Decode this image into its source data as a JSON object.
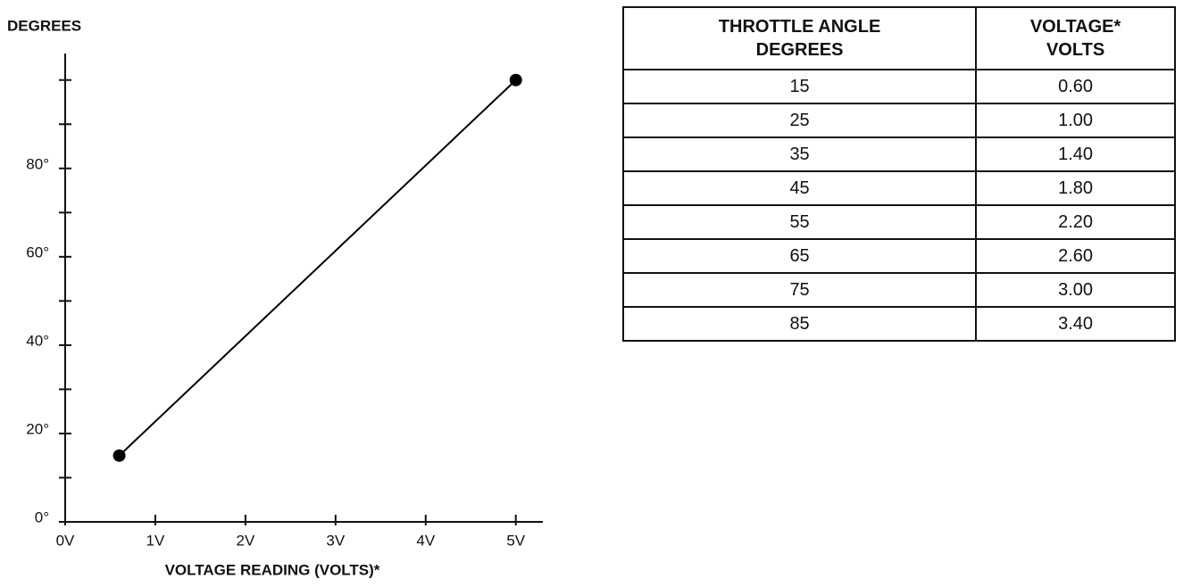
{
  "chart_data": {
    "type": "line",
    "y_label": "DEGREES",
    "x_label": "VOLTAGE READING (VOLTS)*",
    "x": [
      0.6,
      5
    ],
    "values": [
      15,
      100
    ],
    "color": "#000000",
    "xlim": [
      0,
      5.3
    ],
    "ylim": [
      0,
      106
    ],
    "xticks": [
      {
        "value": 0,
        "label": "0V"
      },
      {
        "value": 1,
        "label": "1V"
      },
      {
        "value": 2,
        "label": "2V"
      },
      {
        "value": 3,
        "label": "3V"
      },
      {
        "value": 4,
        "label": "4V"
      },
      {
        "value": 5,
        "label": "5V"
      }
    ],
    "yticks": [
      {
        "value": 0,
        "label": "0°"
      },
      {
        "value": 20,
        "label": "20°"
      },
      {
        "value": 40,
        "label": "40°"
      },
      {
        "value": 60,
        "label": "60°"
      },
      {
        "value": 80,
        "label": "80°"
      }
    ],
    "yminorticks": [
      10,
      30,
      50,
      70,
      90,
      100
    ]
  },
  "table": {
    "header": [
      [
        "THROTTLE ANGLE",
        "DEGREES"
      ],
      [
        "VOLTAGE*",
        "VOLTS"
      ]
    ],
    "rows": [
      [
        "15",
        "0.60"
      ],
      [
        "25",
        "1.00"
      ],
      [
        "35",
        "1.40"
      ],
      [
        "45",
        "1.80"
      ],
      [
        "55",
        "2.20"
      ],
      [
        "65",
        "2.60"
      ],
      [
        "75",
        "3.00"
      ],
      [
        "85",
        "3.40"
      ]
    ]
  }
}
